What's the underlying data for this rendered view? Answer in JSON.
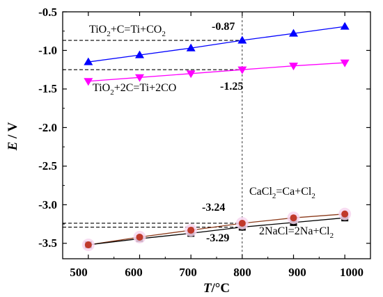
{
  "chart_data": {
    "type": "line",
    "x": [
      500,
      600,
      700,
      800,
      900,
      1000
    ],
    "xlim": [
      450,
      1050
    ],
    "ylim": [
      -3.7,
      -0.5
    ],
    "x_ticks": [
      "500",
      "600",
      "700",
      "800",
      "900",
      "1000"
    ],
    "y_ticks": [
      "-0.5",
      "-1.0",
      "-1.5",
      "-2.0",
      "-2.5",
      "-3.0",
      "-3.5"
    ],
    "x_tick_values": [
      500,
      600,
      700,
      800,
      900,
      1000
    ],
    "y_tick_values": [
      -0.5,
      -1.0,
      -1.5,
      -2.0,
      -2.5,
      -3.0,
      -3.5
    ],
    "xlabel": {
      "italic": "T",
      "rest": "/°C"
    },
    "ylabel": {
      "italic": "E",
      "rest": " / V"
    },
    "grid": false,
    "series": [
      {
        "name": {
          "a": "TiO",
          "b": "2",
          "c": "+C=Ti+CO",
          "d": "2"
        },
        "values": [
          -1.15,
          -1.06,
          -0.97,
          -0.87,
          -0.78,
          -0.69
        ],
        "color": "#0000ff",
        "line_color": "#0000ff",
        "marker": "triangle-up"
      },
      {
        "name": {
          "a": "TiO",
          "b": "2",
          "c": "+2C=Ti+2CO"
        },
        "values": [
          -1.4,
          -1.35,
          -1.3,
          -1.25,
          -1.2,
          -1.16
        ],
        "color": "#ff00ff",
        "line_color": "#ff00ff",
        "marker": "triangle-down"
      },
      {
        "name": {
          "a": "CaCl",
          "b": "2",
          "c": "=Ca+Cl",
          "d": "2"
        },
        "values": [
          -3.52,
          -3.42,
          -3.33,
          -3.24,
          -3.17,
          -3.12
        ],
        "color": "#c0392b",
        "line_color": "#8b3a1a",
        "marker": "circle"
      },
      {
        "name": {
          "a": "2NaCl=2Na+Cl",
          "b": "2"
        },
        "values": [
          -3.52,
          -3.44,
          -3.37,
          -3.29,
          -3.23,
          -3.17
        ],
        "color": "#000000",
        "line_color": "#000000",
        "marker": "square"
      }
    ],
    "annotations": {
      "v1": "-0.87",
      "v2": "-1.25",
      "v3": "-3.24",
      "v4": "-3.29"
    },
    "reference_lines": {
      "vertical_x": 800,
      "horizontal_y": [
        -0.87,
        -1.25,
        -3.24,
        -3.29
      ]
    }
  }
}
